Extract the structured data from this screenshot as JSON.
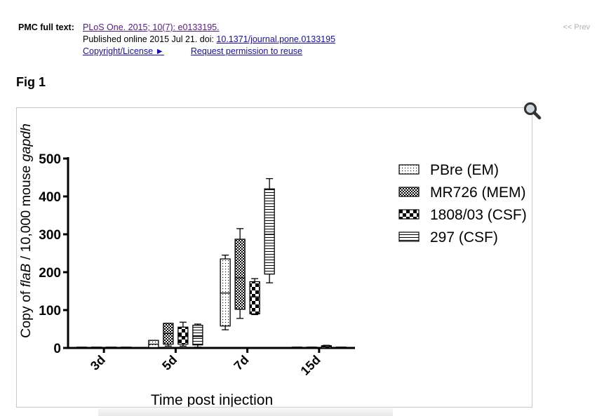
{
  "citation": {
    "label": "PMC full text:",
    "journal_link": "PLoS One. 2015; 10(7): e0133195.",
    "published_text": "Published online 2015 Jul 21. doi: ",
    "doi_link": "10.1371/journal.pone.0133195",
    "copyright_link": "Copyright/License ►",
    "permission_link": "Request permission to reuse"
  },
  "nav": {
    "prev_label": "<< Prev"
  },
  "figure": {
    "title": "Fig 1",
    "zoom_icon": "magnifier-icon"
  },
  "chart_data": {
    "type": "box",
    "xlabel": "Time post injection",
    "ylabel_parts": [
      {
        "text": "Copy of ",
        "italic": false
      },
      {
        "text": "flaB",
        "italic": true
      },
      {
        "text": " / 10,000 mouse ",
        "italic": false
      },
      {
        "text": "gapdh",
        "italic": true
      }
    ],
    "ylim": [
      0,
      500
    ],
    "yticks": [
      "0",
      "100",
      "200",
      "300",
      "400",
      "500"
    ],
    "categories": [
      "3d",
      "5d",
      "7d",
      "15d"
    ],
    "legend_position": "right",
    "series": [
      {
        "name": "PBre (EM)",
        "pattern": "dots",
        "boxes": [
          {
            "min": 0,
            "q1": 0,
            "median": 0,
            "q3": 1,
            "max": 1
          },
          {
            "min": 0,
            "q1": 1,
            "median": 10,
            "q3": 20,
            "max": 20
          },
          {
            "min": 48,
            "q1": 58,
            "median": 145,
            "q3": 235,
            "max": 245
          },
          {
            "min": 0,
            "q1": 0,
            "median": 1,
            "q3": 2,
            "max": 2
          }
        ]
      },
      {
        "name": "MR726 (MEM)",
        "pattern": "crosshatch",
        "boxes": [
          {
            "min": 0,
            "q1": 0,
            "median": 0,
            "q3": 1,
            "max": 1
          },
          {
            "min": 5,
            "q1": 10,
            "median": 38,
            "q3": 65,
            "max": 65
          },
          {
            "min": 78,
            "q1": 102,
            "median": 185,
            "q3": 287,
            "max": 315
          },
          {
            "min": 0,
            "q1": 0,
            "median": 1,
            "q3": 2,
            "max": 2
          }
        ]
      },
      {
        "name": "1808/03 (CSF)",
        "pattern": "checker",
        "boxes": [
          {
            "min": 0,
            "q1": 0,
            "median": 0,
            "q3": 1,
            "max": 1
          },
          {
            "min": 5,
            "q1": 10,
            "median": 30,
            "q3": 55,
            "max": 68
          },
          {
            "min": 88,
            "q1": 90,
            "median": 135,
            "q3": 175,
            "max": 183
          },
          {
            "min": 0,
            "q1": 0,
            "median": 3,
            "q3": 6,
            "max": 7
          }
        ]
      },
      {
        "name": "297 (CSF)",
        "pattern": "hlines",
        "boxes": [
          {
            "min": 0,
            "q1": 0,
            "median": 0,
            "q3": 1,
            "max": 1
          },
          {
            "min": 2,
            "q1": 8,
            "median": 30,
            "q3": 60,
            "max": 63
          },
          {
            "min": 172,
            "q1": 195,
            "median": 300,
            "q3": 420,
            "max": 447
          },
          {
            "min": 0,
            "q1": 0,
            "median": 1,
            "q3": 2,
            "max": 2
          }
        ]
      }
    ]
  }
}
